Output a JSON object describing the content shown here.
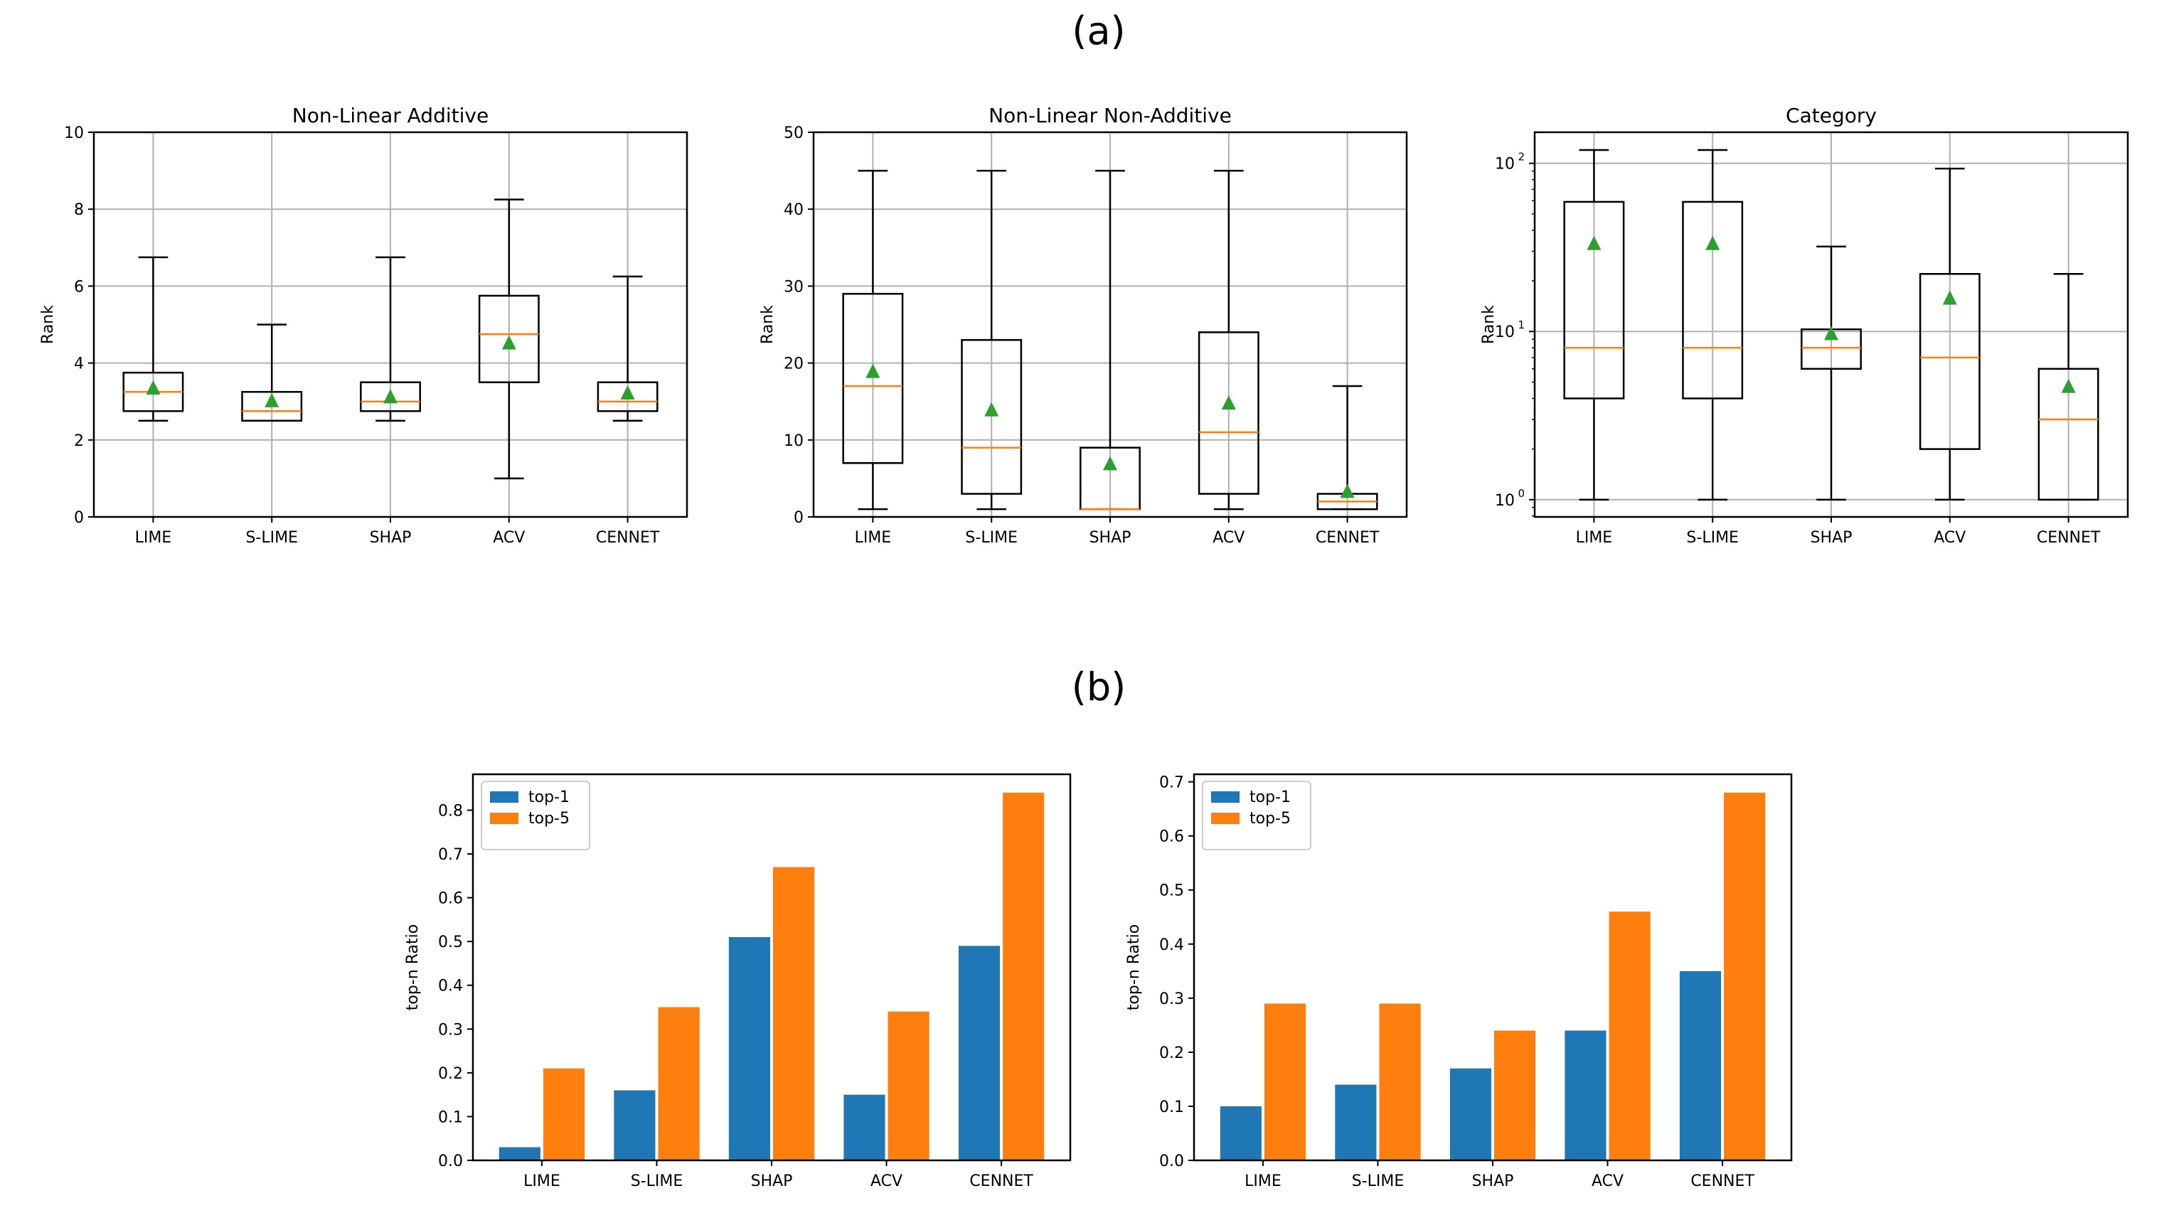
{
  "figure_labels": {
    "a": "(a)",
    "b": "(b)"
  },
  "colors": {
    "top1": "#1f77b4",
    "top5": "#ff7f0e",
    "median": "#ff7f0e",
    "mean": "#2ca02c",
    "grid": "#b0b0b0"
  },
  "chart_data": [
    {
      "type": "box",
      "title": "Non-Linear Additive",
      "ylabel": "Rank",
      "xlabel": "",
      "yscale": "linear",
      "ylim": [
        0,
        10
      ],
      "yticks": [
        0,
        2,
        4,
        6,
        8,
        10
      ],
      "ytick_labels": [
        "0",
        "2",
        "4",
        "6",
        "8",
        "10"
      ],
      "grid": true,
      "categories": [
        "LIME",
        "S-LIME",
        "SHAP",
        "ACV",
        "CENNET"
      ],
      "boxes": [
        {
          "whislo": 2.5,
          "q1": 2.75,
          "median": 3.25,
          "q3": 3.75,
          "whishi": 6.75,
          "mean": 3.33
        },
        {
          "whislo": 2.5,
          "q1": 2.5,
          "median": 2.75,
          "q3": 3.25,
          "whishi": 5.0,
          "mean": 3.0
        },
        {
          "whislo": 2.5,
          "q1": 2.75,
          "median": 3.0,
          "q3": 3.5,
          "whishi": 6.75,
          "mean": 3.1
        },
        {
          "whislo": 1.0,
          "q1": 3.5,
          "median": 4.75,
          "q3": 5.75,
          "whishi": 8.25,
          "mean": 4.5
        },
        {
          "whislo": 2.5,
          "q1": 2.75,
          "median": 3.0,
          "q3": 3.5,
          "whishi": 6.25,
          "mean": 3.2
        }
      ]
    },
    {
      "type": "box",
      "title": "Non-Linear Non-Additive",
      "ylabel": "Rank",
      "xlabel": "",
      "yscale": "linear",
      "ylim": [
        0,
        50
      ],
      "yticks": [
        0,
        10,
        20,
        30,
        40,
        50
      ],
      "ytick_labels": [
        "0",
        "10",
        "20",
        "30",
        "40",
        "50"
      ],
      "grid": true,
      "categories": [
        "LIME",
        "S-LIME",
        "SHAP",
        "ACV",
        "CENNET"
      ],
      "boxes": [
        {
          "whislo": 1,
          "q1": 7,
          "median": 17,
          "q3": 29,
          "whishi": 45,
          "mean": 18.8
        },
        {
          "whislo": 1,
          "q1": 3,
          "median": 9,
          "q3": 23,
          "whishi": 45,
          "mean": 13.8
        },
        {
          "whislo": 1,
          "q1": 1,
          "median": 1,
          "q3": 9,
          "whishi": 45,
          "mean": 6.8
        },
        {
          "whislo": 1,
          "q1": 3,
          "median": 11,
          "q3": 24,
          "whishi": 45,
          "mean": 14.7
        },
        {
          "whislo": 1,
          "q1": 1,
          "median": 2,
          "q3": 3,
          "whishi": 17,
          "mean": 3.2
        }
      ]
    },
    {
      "type": "box",
      "title": "Category",
      "ylabel": "Rank",
      "xlabel": "",
      "yscale": "log",
      "ylim": [
        0.79,
        153
      ],
      "yticks": [
        1,
        10,
        100
      ],
      "ytick_labels": [
        "10",
        "10",
        "10"
      ],
      "ytick_exponents": [
        "0",
        "1",
        "2"
      ],
      "grid": true,
      "categories": [
        "LIME",
        "S-LIME",
        "SHAP",
        "ACV",
        "CENNET"
      ],
      "boxes": [
        {
          "whislo": 1,
          "q1": 4,
          "median": 8,
          "q3": 59,
          "whishi": 120,
          "mean": 33
        },
        {
          "whislo": 1,
          "q1": 4,
          "median": 8,
          "q3": 59,
          "whishi": 120,
          "mean": 33
        },
        {
          "whislo": 1,
          "q1": 6,
          "median": 8,
          "q3": 10.3,
          "whishi": 32,
          "mean": 9.6
        },
        {
          "whislo": 1,
          "q1": 2,
          "median": 7,
          "q3": 22,
          "whishi": 93,
          "mean": 15.6
        },
        {
          "whislo": 1,
          "q1": 1,
          "median": 3,
          "q3": 6,
          "whishi": 22,
          "mean": 4.66
        }
      ]
    },
    {
      "type": "bar",
      "title": "",
      "ylabel": "top-n Ratio",
      "xlabel": "",
      "ylim": [
        0,
        0.882
      ],
      "yticks": [
        0,
        0.1,
        0.2,
        0.3,
        0.4,
        0.5,
        0.6,
        0.7,
        0.8
      ],
      "ytick_labels": [
        "0.0",
        "0.1",
        "0.2",
        "0.3",
        "0.4",
        "0.5",
        "0.6",
        "0.7",
        "0.8"
      ],
      "grid": false,
      "legend": "top-left",
      "categories": [
        "LIME",
        "S-LIME",
        "SHAP",
        "ACV",
        "CENNET"
      ],
      "series": [
        {
          "name": "top-1",
          "values": [
            0.03,
            0.16,
            0.51,
            0.15,
            0.49
          ]
        },
        {
          "name": "top-5",
          "values": [
            0.21,
            0.35,
            0.67,
            0.34,
            0.84
          ]
        }
      ]
    },
    {
      "type": "bar",
      "title": "",
      "ylabel": "top-n Ratio",
      "xlabel": "",
      "ylim": [
        0,
        0.714
      ],
      "yticks": [
        0,
        0.1,
        0.2,
        0.3,
        0.4,
        0.5,
        0.6,
        0.7
      ],
      "ytick_labels": [
        "0.0",
        "0.1",
        "0.2",
        "0.3",
        "0.4",
        "0.5",
        "0.6",
        "0.7"
      ],
      "grid": false,
      "legend": "top-left",
      "categories": [
        "LIME",
        "S-LIME",
        "SHAP",
        "ACV",
        "CENNET"
      ],
      "series": [
        {
          "name": "top-1",
          "values": [
            0.1,
            0.14,
            0.17,
            0.24,
            0.35
          ]
        },
        {
          "name": "top-5",
          "values": [
            0.29,
            0.29,
            0.24,
            0.46,
            0.68
          ]
        }
      ]
    }
  ]
}
